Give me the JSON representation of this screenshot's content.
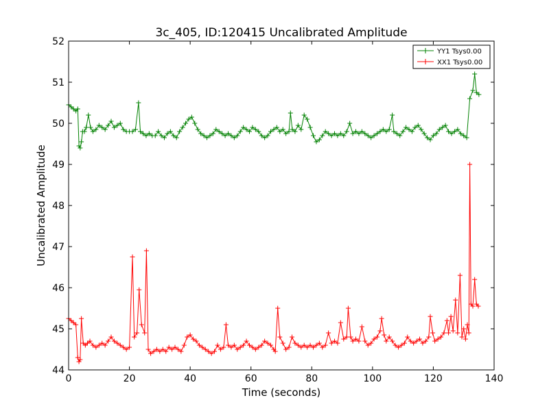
{
  "chart_data": {
    "type": "line",
    "title": "3c_405, ID:120415 Uncalibrated Amplitude",
    "xlabel": "Time (seconds)",
    "ylabel": "Uncalibrated Amplitude",
    "xlim": [
      0,
      140
    ],
    "ylim": [
      44,
      52
    ],
    "xticks": [
      "0",
      "20",
      "40",
      "60",
      "80",
      "100",
      "120",
      "140"
    ],
    "yticks": [
      "44",
      "45",
      "46",
      "47",
      "48",
      "49",
      "50",
      "51",
      "52"
    ],
    "grid": false,
    "legend_position": "top-right",
    "marker": "plus",
    "series": [
      {
        "name": "YY1 Tsys0.00",
        "color": "#008000",
        "points": [
          [
            0,
            50.45
          ],
          [
            0.8,
            50.4
          ],
          [
            1.6,
            50.35
          ],
          [
            2.4,
            50.3
          ],
          [
            3.0,
            50.35
          ],
          [
            3.4,
            49.45
          ],
          [
            3.8,
            49.4
          ],
          [
            4.2,
            49.55
          ],
          [
            4.6,
            49.8
          ],
          [
            5.2,
            49.8
          ],
          [
            5.8,
            49.9
          ],
          [
            6.5,
            50.2
          ],
          [
            7.2,
            49.9
          ],
          [
            8.0,
            49.8
          ],
          [
            9.0,
            49.85
          ],
          [
            10.0,
            49.95
          ],
          [
            11.0,
            49.9
          ],
          [
            12.0,
            49.85
          ],
          [
            13.0,
            49.95
          ],
          [
            14.0,
            50.05
          ],
          [
            15.0,
            49.9
          ],
          [
            16.0,
            49.95
          ],
          [
            17.0,
            50.0
          ],
          [
            18.0,
            49.85
          ],
          [
            19.0,
            49.8
          ],
          [
            20.0,
            49.8
          ],
          [
            21.0,
            49.8
          ],
          [
            22.0,
            49.85
          ],
          [
            23.0,
            50.5
          ],
          [
            23.6,
            49.8
          ],
          [
            24.5,
            49.75
          ],
          [
            25.5,
            49.7
          ],
          [
            26.5,
            49.75
          ],
          [
            27.5,
            49.7
          ],
          [
            28.5,
            49.7
          ],
          [
            29.5,
            49.8
          ],
          [
            30.5,
            49.7
          ],
          [
            31.5,
            49.65
          ],
          [
            32.5,
            49.75
          ],
          [
            33.5,
            49.8
          ],
          [
            34.5,
            49.7
          ],
          [
            35.5,
            49.65
          ],
          [
            36.5,
            49.8
          ],
          [
            37.5,
            49.9
          ],
          [
            38.5,
            50.0
          ],
          [
            39.5,
            50.1
          ],
          [
            40.5,
            50.15
          ],
          [
            41.5,
            50.0
          ],
          [
            42.5,
            49.85
          ],
          [
            43.5,
            49.75
          ],
          [
            44.5,
            49.7
          ],
          [
            45.5,
            49.65
          ],
          [
            46.5,
            49.7
          ],
          [
            47.5,
            49.75
          ],
          [
            48.5,
            49.85
          ],
          [
            49.5,
            49.8
          ],
          [
            50.5,
            49.75
          ],
          [
            51.5,
            49.7
          ],
          [
            52.5,
            49.75
          ],
          [
            53.5,
            49.7
          ],
          [
            54.5,
            49.65
          ],
          [
            55.5,
            49.7
          ],
          [
            56.5,
            49.8
          ],
          [
            57.5,
            49.9
          ],
          [
            58.5,
            49.85
          ],
          [
            59.5,
            49.8
          ],
          [
            60.5,
            49.9
          ],
          [
            61.5,
            49.85
          ],
          [
            62.5,
            49.8
          ],
          [
            63.5,
            49.7
          ],
          [
            64.5,
            49.65
          ],
          [
            65.5,
            49.7
          ],
          [
            66.5,
            49.8
          ],
          [
            67.5,
            49.85
          ],
          [
            68.5,
            49.9
          ],
          [
            69.5,
            49.8
          ],
          [
            70.5,
            49.85
          ],
          [
            71.5,
            49.75
          ],
          [
            72.5,
            49.8
          ],
          [
            73.0,
            50.25
          ],
          [
            73.6,
            49.85
          ],
          [
            74.5,
            49.8
          ],
          [
            75.5,
            49.95
          ],
          [
            76.5,
            49.85
          ],
          [
            77.5,
            50.2
          ],
          [
            78.5,
            50.1
          ],
          [
            79.5,
            49.9
          ],
          [
            80.5,
            49.7
          ],
          [
            81.5,
            49.55
          ],
          [
            82.5,
            49.6
          ],
          [
            83.5,
            49.7
          ],
          [
            84.5,
            49.8
          ],
          [
            85.5,
            49.75
          ],
          [
            86.5,
            49.7
          ],
          [
            87.5,
            49.75
          ],
          [
            88.5,
            49.7
          ],
          [
            89.5,
            49.75
          ],
          [
            90.5,
            49.7
          ],
          [
            91.5,
            49.8
          ],
          [
            92.5,
            50.0
          ],
          [
            93.5,
            49.75
          ],
          [
            94.5,
            49.8
          ],
          [
            95.5,
            49.75
          ],
          [
            96.5,
            49.8
          ],
          [
            97.5,
            49.75
          ],
          [
            98.5,
            49.7
          ],
          [
            99.5,
            49.65
          ],
          [
            100.5,
            49.7
          ],
          [
            101.5,
            49.75
          ],
          [
            102.5,
            49.8
          ],
          [
            103.5,
            49.85
          ],
          [
            104.5,
            49.8
          ],
          [
            105.5,
            49.85
          ],
          [
            106.5,
            50.2
          ],
          [
            107.0,
            49.8
          ],
          [
            108.0,
            49.75
          ],
          [
            109.0,
            49.7
          ],
          [
            110.0,
            49.8
          ],
          [
            111.0,
            49.9
          ],
          [
            112.0,
            49.85
          ],
          [
            113.0,
            49.8
          ],
          [
            114.0,
            49.9
          ],
          [
            115.0,
            49.95
          ],
          [
            116.0,
            49.85
          ],
          [
            117.0,
            49.75
          ],
          [
            118.0,
            49.65
          ],
          [
            119.0,
            49.6
          ],
          [
            120.0,
            49.7
          ],
          [
            121.0,
            49.75
          ],
          [
            122.0,
            49.85
          ],
          [
            123.0,
            49.9
          ],
          [
            124.0,
            49.95
          ],
          [
            125.0,
            49.8
          ],
          [
            126.0,
            49.75
          ],
          [
            127.0,
            49.8
          ],
          [
            128.0,
            49.85
          ],
          [
            129.0,
            49.75
          ],
          [
            130.0,
            49.7
          ],
          [
            131.0,
            49.65
          ],
          [
            132.0,
            50.6
          ],
          [
            133.0,
            50.8
          ],
          [
            133.6,
            51.2
          ],
          [
            134.2,
            50.75
          ],
          [
            135.0,
            50.7
          ]
        ]
      },
      {
        "name": "XX1 Tsys0.00",
        "color": "#ff0000",
        "points": [
          [
            0,
            45.25
          ],
          [
            0.8,
            45.2
          ],
          [
            1.6,
            45.15
          ],
          [
            2.4,
            45.1
          ],
          [
            3.0,
            44.3
          ],
          [
            3.4,
            44.2
          ],
          [
            3.8,
            44.25
          ],
          [
            4.2,
            45.25
          ],
          [
            4.8,
            44.65
          ],
          [
            5.5,
            44.6
          ],
          [
            6.2,
            44.65
          ],
          [
            7.0,
            44.7
          ],
          [
            8.0,
            44.6
          ],
          [
            9.0,
            44.55
          ],
          [
            10.0,
            44.6
          ],
          [
            11.0,
            44.65
          ],
          [
            12.0,
            44.6
          ],
          [
            13.0,
            44.7
          ],
          [
            14.0,
            44.8
          ],
          [
            15.0,
            44.7
          ],
          [
            16.0,
            44.65
          ],
          [
            17.0,
            44.6
          ],
          [
            18.0,
            44.55
          ],
          [
            19.0,
            44.5
          ],
          [
            20.0,
            44.55
          ],
          [
            21.0,
            46.75
          ],
          [
            21.6,
            44.8
          ],
          [
            22.5,
            44.9
          ],
          [
            23.2,
            45.95
          ],
          [
            24.0,
            45.1
          ],
          [
            25.0,
            44.9
          ],
          [
            25.6,
            46.9
          ],
          [
            26.2,
            44.5
          ],
          [
            27.0,
            44.4
          ],
          [
            28.0,
            44.45
          ],
          [
            29.0,
            44.5
          ],
          [
            30.0,
            44.45
          ],
          [
            31.0,
            44.5
          ],
          [
            32.0,
            44.45
          ],
          [
            33.0,
            44.55
          ],
          [
            34.0,
            44.5
          ],
          [
            35.0,
            44.55
          ],
          [
            36.0,
            44.5
          ],
          [
            37.0,
            44.45
          ],
          [
            38.0,
            44.6
          ],
          [
            39.0,
            44.8
          ],
          [
            40.0,
            44.85
          ],
          [
            41.0,
            44.75
          ],
          [
            42.0,
            44.7
          ],
          [
            43.0,
            44.6
          ],
          [
            44.0,
            44.55
          ],
          [
            45.0,
            44.5
          ],
          [
            46.0,
            44.45
          ],
          [
            47.0,
            44.4
          ],
          [
            48.0,
            44.45
          ],
          [
            49.0,
            44.6
          ],
          [
            50.0,
            44.5
          ],
          [
            51.0,
            44.55
          ],
          [
            51.8,
            45.1
          ],
          [
            52.5,
            44.6
          ],
          [
            53.5,
            44.55
          ],
          [
            54.5,
            44.6
          ],
          [
            55.5,
            44.5
          ],
          [
            56.5,
            44.55
          ],
          [
            57.5,
            44.6
          ],
          [
            58.5,
            44.7
          ],
          [
            59.5,
            44.6
          ],
          [
            60.5,
            44.55
          ],
          [
            61.5,
            44.5
          ],
          [
            62.5,
            44.55
          ],
          [
            63.5,
            44.6
          ],
          [
            64.5,
            44.7
          ],
          [
            65.5,
            44.65
          ],
          [
            66.5,
            44.6
          ],
          [
            67.5,
            44.5
          ],
          [
            68.0,
            44.45
          ],
          [
            68.8,
            45.5
          ],
          [
            69.5,
            44.8
          ],
          [
            70.5,
            44.65
          ],
          [
            71.5,
            44.5
          ],
          [
            72.5,
            44.55
          ],
          [
            73.5,
            44.8
          ],
          [
            74.5,
            44.65
          ],
          [
            75.5,
            44.6
          ],
          [
            76.5,
            44.55
          ],
          [
            77.5,
            44.6
          ],
          [
            78.5,
            44.55
          ],
          [
            79.5,
            44.6
          ],
          [
            80.5,
            44.55
          ],
          [
            81.5,
            44.6
          ],
          [
            82.5,
            44.65
          ],
          [
            83.5,
            44.55
          ],
          [
            84.5,
            44.6
          ],
          [
            85.5,
            44.9
          ],
          [
            86.5,
            44.65
          ],
          [
            87.5,
            44.7
          ],
          [
            88.5,
            44.65
          ],
          [
            89.5,
            45.15
          ],
          [
            90.5,
            44.75
          ],
          [
            91.5,
            44.8
          ],
          [
            92.0,
            45.5
          ],
          [
            92.8,
            44.8
          ],
          [
            93.5,
            44.7
          ],
          [
            94.5,
            44.75
          ],
          [
            95.5,
            44.7
          ],
          [
            96.5,
            45.05
          ],
          [
            97.5,
            44.7
          ],
          [
            98.5,
            44.6
          ],
          [
            99.5,
            44.65
          ],
          [
            100.5,
            44.75
          ],
          [
            101.5,
            44.8
          ],
          [
            102.5,
            44.95
          ],
          [
            103.0,
            45.25
          ],
          [
            103.8,
            44.85
          ],
          [
            104.5,
            44.7
          ],
          [
            105.5,
            44.8
          ],
          [
            106.5,
            44.7
          ],
          [
            107.5,
            44.6
          ],
          [
            108.5,
            44.55
          ],
          [
            109.5,
            44.6
          ],
          [
            110.5,
            44.65
          ],
          [
            111.5,
            44.8
          ],
          [
            112.5,
            44.7
          ],
          [
            113.5,
            44.65
          ],
          [
            114.5,
            44.7
          ],
          [
            115.5,
            44.75
          ],
          [
            116.5,
            44.65
          ],
          [
            117.5,
            44.7
          ],
          [
            118.5,
            44.8
          ],
          [
            119.0,
            45.3
          ],
          [
            119.8,
            44.9
          ],
          [
            120.5,
            44.7
          ],
          [
            121.5,
            44.75
          ],
          [
            122.5,
            44.8
          ],
          [
            123.5,
            44.9
          ],
          [
            124.5,
            45.2
          ],
          [
            125.0,
            44.9
          ],
          [
            125.8,
            45.3
          ],
          [
            126.5,
            44.95
          ],
          [
            127.3,
            45.7
          ],
          [
            128.0,
            44.9
          ],
          [
            128.8,
            46.3
          ],
          [
            129.4,
            44.8
          ],
          [
            130.0,
            45.0
          ],
          [
            130.6,
            44.75
          ],
          [
            131.2,
            45.1
          ],
          [
            131.7,
            44.9
          ],
          [
            132.0,
            49.0
          ],
          [
            132.4,
            45.6
          ],
          [
            133.0,
            45.55
          ],
          [
            133.6,
            46.2
          ],
          [
            134.2,
            45.6
          ],
          [
            134.8,
            45.55
          ]
        ]
      }
    ]
  }
}
